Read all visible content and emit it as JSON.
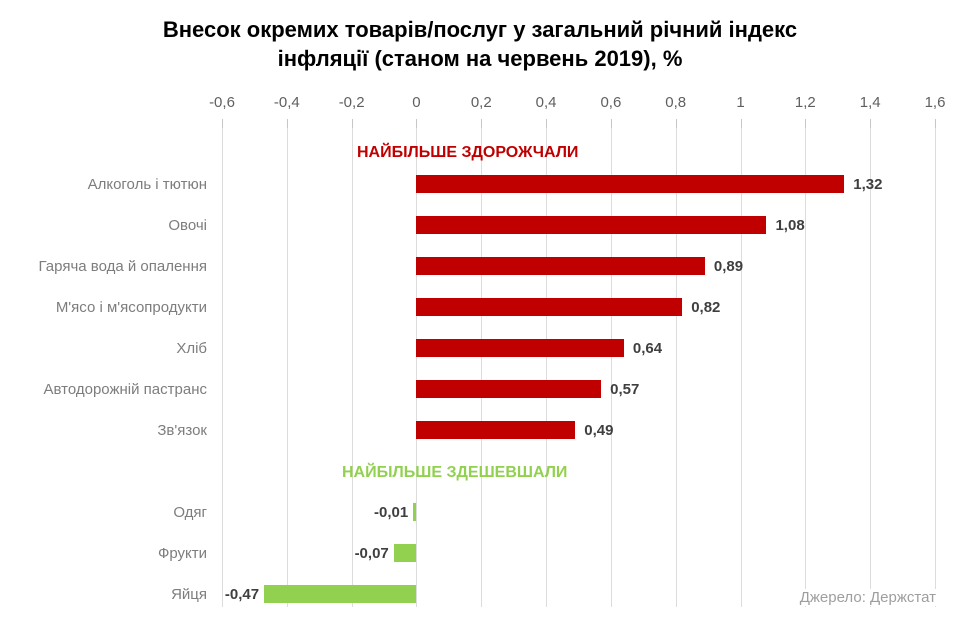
{
  "title_lines": [
    "Внесок окремих товарів/послуг у загальний річний індекс",
    "інфляції (станом на червень 2019), %"
  ],
  "source": "Джерело: Держстат",
  "colors": {
    "increase_bar": "#c00000",
    "decrease_bar": "#92d050",
    "increase_header": "#c00000",
    "decrease_header": "#92d050",
    "grid": "#dcdcdc",
    "value_label": "#3f3f3f",
    "category_label": "#7d7d7d",
    "source_text": "#9e9e9e"
  },
  "chart_data": {
    "type": "bar",
    "orientation": "horizontal",
    "title": "Внесок окремих товарів/послуг у загальний річний індекс інфляції (станом на червень 2019), %",
    "xlim": [
      -0.6,
      1.6
    ],
    "grid": true,
    "xtick_values": [
      -0.6,
      -0.4,
      -0.2,
      0,
      0.2,
      0.4,
      0.6,
      0.8,
      1,
      1.2,
      1.4,
      1.6
    ],
    "xtick_labels": [
      "-0,6",
      "-0,4",
      "-0,2",
      "0",
      "0,2",
      "0,4",
      "0,6",
      "0,8",
      "1",
      "1,2",
      "1,4",
      "1,6"
    ],
    "sections": [
      {
        "header": "НАЙБІЛЬШЕ ЗДОРОЖЧАЛИ",
        "color": "#c00000",
        "items": [
          {
            "label": "Алкоголь і тютюн",
            "value": 1.32,
            "value_label": "1,32"
          },
          {
            "label": "Овочі",
            "value": 1.08,
            "value_label": "1,08"
          },
          {
            "label": "Гаряча вода й опалення",
            "value": 0.89,
            "value_label": "0,89"
          },
          {
            "label": "М'ясо і м'ясопродукти",
            "value": 0.82,
            "value_label": "0,82"
          },
          {
            "label": "Хліб",
            "value": 0.64,
            "value_label": "0,64"
          },
          {
            "label": "Автодорожній пастранс",
            "value": 0.57,
            "value_label": "0,57"
          },
          {
            "label": "Зв'язок",
            "value": 0.49,
            "value_label": "0,49"
          }
        ]
      },
      {
        "header": "НАЙБІЛЬШЕ ЗДЕШЕВШАЛИ",
        "color": "#92d050",
        "items": [
          {
            "label": "Одяг",
            "value": -0.01,
            "value_label": "-0,01"
          },
          {
            "label": "Фрукти",
            "value": -0.07,
            "value_label": "-0,07"
          },
          {
            "label": "Яйця",
            "value": -0.47,
            "value_label": "-0,47"
          }
        ]
      }
    ]
  }
}
